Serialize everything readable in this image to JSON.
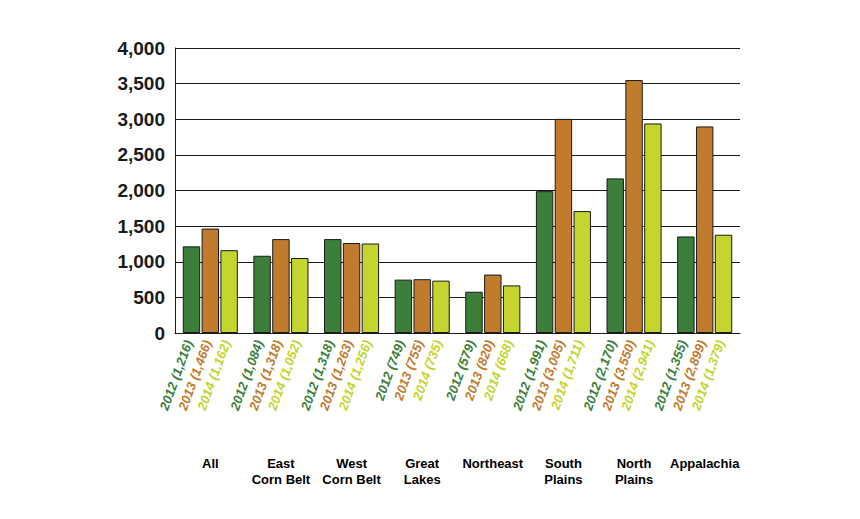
{
  "chart_data": {
    "type": "bar",
    "categories": [
      "All",
      "East\nCorn Belt",
      "West\nCorn Belt",
      "Great\nLakes",
      "Northeast",
      "South\nPlains",
      "North\nPlains",
      "Appalachia"
    ],
    "series": [
      {
        "name": "2012",
        "color": "#3b7f3b",
        "values": [
          1216,
          1084,
          1318,
          749,
          579,
          1991,
          2170,
          1355
        ],
        "value_labels": [
          "2012 (1,216)",
          "2012 (1,084)",
          "2012 (1,318)",
          "2012 (749)",
          "2012 (579)",
          "2012 (1,991)",
          "2012 (2,170)",
          "2012 (1,355)"
        ]
      },
      {
        "name": "2013",
        "color": "#c07b2c",
        "values": [
          1466,
          1318,
          1263,
          755,
          820,
          3005,
          3550,
          2899
        ],
        "value_labels": [
          "2013 (1,466)",
          "2013 (1,318)",
          "2013 (1,263)",
          "2013 (755)",
          "2013 (820)",
          "2013 (3,005)",
          "2013 (3,550)",
          "2013 (2,899)"
        ]
      },
      {
        "name": "2014",
        "color": "#c3d52e",
        "values": [
          1162,
          1052,
          1256,
          735,
          668,
          1711,
          2941,
          1379
        ],
        "value_labels": [
          "2014 (1,162)",
          "2014 (1,052)",
          "2014 (1,256)",
          "2014 (735)",
          "2014 (668)",
          "2014 (1,711)",
          "2014 (2,941)",
          "2014 (1,379)"
        ]
      }
    ],
    "ylim": [
      0,
      4000
    ],
    "yticks": [
      0,
      500,
      1000,
      1500,
      2000,
      2500,
      3000,
      3500,
      4000
    ],
    "grid": true,
    "data_labels": true
  }
}
